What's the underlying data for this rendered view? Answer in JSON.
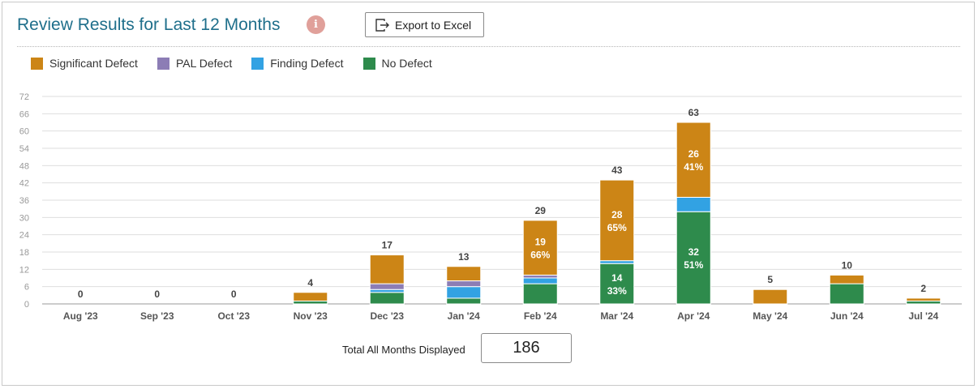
{
  "header": {
    "title": "Review Results for Last 12 Months",
    "info_icon": "i",
    "export_label": "Export to Excel"
  },
  "legend": [
    {
      "label": "Significant Defect",
      "color": "#cc8516"
    },
    {
      "label": "PAL Defect",
      "color": "#8c7db5"
    },
    {
      "label": "Finding Defect",
      "color": "#32a2e3"
    },
    {
      "label": "No Defect",
      "color": "#2e8b4c"
    }
  ],
  "footer": {
    "total_label": "Total All Months Displayed",
    "total_value": "186"
  },
  "chart_data": {
    "type": "bar",
    "stacked": true,
    "categories": [
      "Aug '23",
      "Sep '23",
      "Oct '23",
      "Nov '23",
      "Dec '23",
      "Jan '24",
      "Feb '24",
      "Mar '24",
      "Apr '24",
      "May '24",
      "Jun '24",
      "Jul '24"
    ],
    "totals": [
      0,
      0,
      0,
      4,
      17,
      13,
      29,
      43,
      63,
      5,
      10,
      2
    ],
    "series": [
      {
        "name": "No Defect",
        "color": "#2e8b4c",
        "values": [
          0,
          0,
          0,
          1,
          4,
          2,
          7,
          14,
          32,
          0,
          7,
          1
        ]
      },
      {
        "name": "Finding Defect",
        "color": "#32a2e3",
        "values": [
          0,
          0,
          0,
          0,
          1,
          4,
          2,
          1,
          5,
          0,
          0,
          0
        ]
      },
      {
        "name": "PAL Defect",
        "color": "#8c7db5",
        "values": [
          0,
          0,
          0,
          0,
          2,
          2,
          1,
          0,
          0,
          0,
          0,
          0
        ]
      },
      {
        "name": "Significant Defect",
        "color": "#cc8516",
        "values": [
          0,
          0,
          0,
          3,
          10,
          5,
          19,
          28,
          26,
          5,
          3,
          1
        ]
      }
    ],
    "segment_labels": [
      {
        "category": "Feb '24",
        "series": "Significant Defect",
        "count": "19",
        "pct": "66%"
      },
      {
        "category": "Mar '24",
        "series": "Significant Defect",
        "count": "28",
        "pct": "65%"
      },
      {
        "category": "Mar '24",
        "series": "No Defect",
        "count": "14",
        "pct": "33%"
      },
      {
        "category": "Apr '24",
        "series": "Significant Defect",
        "count": "26",
        "pct": "41%"
      },
      {
        "category": "Apr '24",
        "series": "No Defect",
        "count": "32",
        "pct": "51%"
      }
    ],
    "yticks": [
      0,
      6,
      12,
      18,
      24,
      30,
      36,
      42,
      48,
      54,
      60,
      66,
      72
    ],
    "ylim": [
      0,
      72
    ],
    "grid": true,
    "legend_position": "top-left"
  }
}
